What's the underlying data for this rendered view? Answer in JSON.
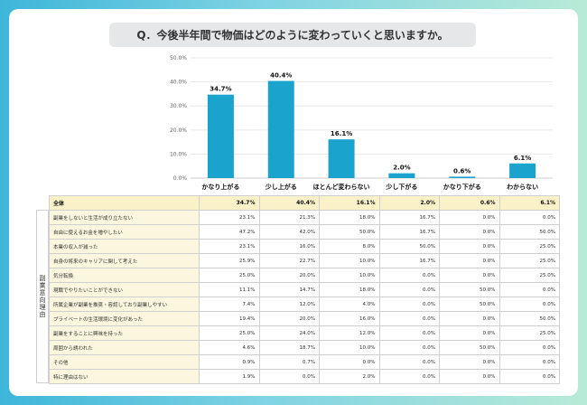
{
  "question": "Q．今後半年間で物価はどのように変わっていくと思いますか。",
  "chart_data": {
    "type": "bar",
    "categories": [
      "かなり上がる",
      "少し上がる",
      "ほとんど変わらない",
      "少し下がる",
      "かなり下がる",
      "わからない"
    ],
    "values": [
      34.7,
      40.4,
      16.1,
      2.0,
      0.6,
      6.1
    ],
    "value_labels": [
      "34.7%",
      "40.4%",
      "16.1%",
      "2.0%",
      "0.6%",
      "6.1%"
    ],
    "ylim": [
      0,
      50
    ],
    "yticks": [
      "0.0%",
      "10.0%",
      "20.0%",
      "30.0%",
      "40.0%",
      "50.0%"
    ],
    "grid": true,
    "bar_color": "#1aa3cc"
  },
  "table": {
    "side_label": "副業意向理由",
    "total": {
      "label": "全体",
      "values": [
        "34.7%",
        "40.4%",
        "16.1%",
        "2.0%",
        "0.6%",
        "6.1%"
      ]
    },
    "rows": [
      {
        "label": "副業をしないと生活が成り立たない",
        "values": [
          "23.1%",
          "21.3%",
          "18.0%",
          "16.7%",
          "0.0%",
          "0.0%"
        ]
      },
      {
        "label": "自由に使えるお金を増やしたい",
        "values": [
          "47.2%",
          "42.0%",
          "50.0%",
          "16.7%",
          "0.0%",
          "50.0%"
        ]
      },
      {
        "label": "本業の収入が減った",
        "values": [
          "23.1%",
          "16.0%",
          "8.0%",
          "50.0%",
          "0.0%",
          "25.0%"
        ]
      },
      {
        "label": "自身の将来のキャリアに関して考えた",
        "values": [
          "25.9%",
          "22.7%",
          "10.0%",
          "16.7%",
          "0.0%",
          "25.0%"
        ]
      },
      {
        "label": "気分転換",
        "values": [
          "25.0%",
          "20.0%",
          "10.0%",
          "0.0%",
          "0.0%",
          "25.0%"
        ]
      },
      {
        "label": "現職でやりたいことができない",
        "values": [
          "11.1%",
          "14.7%",
          "18.0%",
          "0.0%",
          "50.0%",
          "0.0%"
        ]
      },
      {
        "label": "所属企業が副業を推奨・容認しており副業しやすい",
        "values": [
          "7.4%",
          "12.0%",
          "4.0%",
          "0.0%",
          "50.0%",
          "0.0%"
        ]
      },
      {
        "label": "プライベートの生活環境に変化があった",
        "values": [
          "19.4%",
          "20.0%",
          "16.0%",
          "0.0%",
          "0.0%",
          "50.0%"
        ]
      },
      {
        "label": "副業をすることに興味を持った",
        "values": [
          "25.0%",
          "24.0%",
          "12.0%",
          "0.0%",
          "0.0%",
          "25.0%"
        ]
      },
      {
        "label": "周囲から誘われた",
        "values": [
          "4.6%",
          "18.7%",
          "10.0%",
          "0.0%",
          "50.0%",
          "0.0%"
        ]
      },
      {
        "label": "その他",
        "values": [
          "0.9%",
          "0.7%",
          "0.0%",
          "0.0%",
          "0.0%",
          "0.0%"
        ]
      },
      {
        "label": "特に理由はない",
        "values": [
          "1.9%",
          "0.0%",
          "2.0%",
          "0.0%",
          "0.0%",
          "0.0%"
        ]
      }
    ]
  }
}
